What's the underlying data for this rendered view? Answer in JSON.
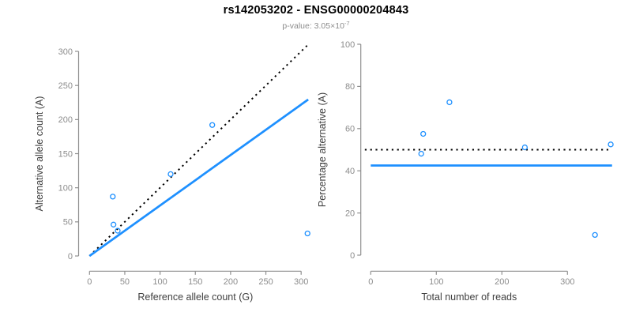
{
  "header": {
    "title": "rs142053202 - ENSG00000204843",
    "pvalue_prefix": "p-value: 3.05×10",
    "pvalue_exponent": "-7"
  },
  "colors": {
    "point_blue": "#1E90FF",
    "fit_line_blue": "#1E90FF",
    "expected_line_black": "#000000",
    "axis_gray": "#909090",
    "tick_label_gray": "#8c8c8c",
    "axis_label_dark": "#404040",
    "subtitle_gray": "#8c8c8c",
    "background": "#ffffff"
  },
  "chart_data": [
    {
      "type": "scatter",
      "panel": "left",
      "xlabel": "Reference allele count (G)",
      "ylabel": "Alternative allele count (A)",
      "xlim": [
        0,
        310
      ],
      "ylim": [
        0,
        310
      ],
      "xticks": [
        0,
        50,
        100,
        150,
        200,
        250,
        300
      ],
      "yticks": [
        0,
        50,
        100,
        150,
        200,
        250,
        300
      ],
      "grid": false,
      "legend": null,
      "series": [
        {
          "name": "sample-points",
          "kind": "points",
          "marker": "open-circle",
          "color": "#1E90FF",
          "points": [
            [
              33,
              87
            ],
            [
              34,
              46
            ],
            [
              40,
              37
            ],
            [
              115,
              120
            ],
            [
              174,
              192
            ],
            [
              309,
              33
            ]
          ]
        },
        {
          "name": "expected-50pct-identity-line",
          "kind": "line",
          "style": "dotted",
          "color": "#000000",
          "from": [
            0,
            0
          ],
          "to": [
            310,
            310
          ]
        },
        {
          "name": "fitted-allelic-ratio-line",
          "kind": "line",
          "style": "solid",
          "color": "#1E90FF",
          "from": [
            0,
            0
          ],
          "to": [
            310,
            229.4
          ]
        }
      ]
    },
    {
      "type": "scatter",
      "panel": "right",
      "xlabel": "Total number of reads",
      "ylabel": "Percentage alternative (A)",
      "xlim": [
        0,
        370
      ],
      "ylim": [
        0,
        100
      ],
      "xticks": [
        0,
        100,
        200,
        300
      ],
      "yticks": [
        0,
        20,
        40,
        60,
        80,
        100
      ],
      "grid": false,
      "legend": null,
      "series": [
        {
          "name": "sample-points",
          "kind": "points",
          "marker": "open-circle",
          "color": "#1E90FF",
          "points": [
            [
              120,
              72.5
            ],
            [
              80,
              57.5
            ],
            [
              77,
              48.1
            ],
            [
              235,
              51.1
            ],
            [
              366,
              52.5
            ],
            [
              342,
              9.6
            ]
          ]
        },
        {
          "name": "expected-50pct-line",
          "kind": "line",
          "style": "dotted",
          "color": "#000000",
          "from": [
            -9,
            50
          ],
          "to": [
            363,
            50
          ]
        },
        {
          "name": "fitted-percentage-line",
          "kind": "line",
          "style": "solid",
          "color": "#1E90FF",
          "from": [
            0,
            42.5
          ],
          "to": [
            368,
            42.5
          ]
        }
      ]
    }
  ]
}
